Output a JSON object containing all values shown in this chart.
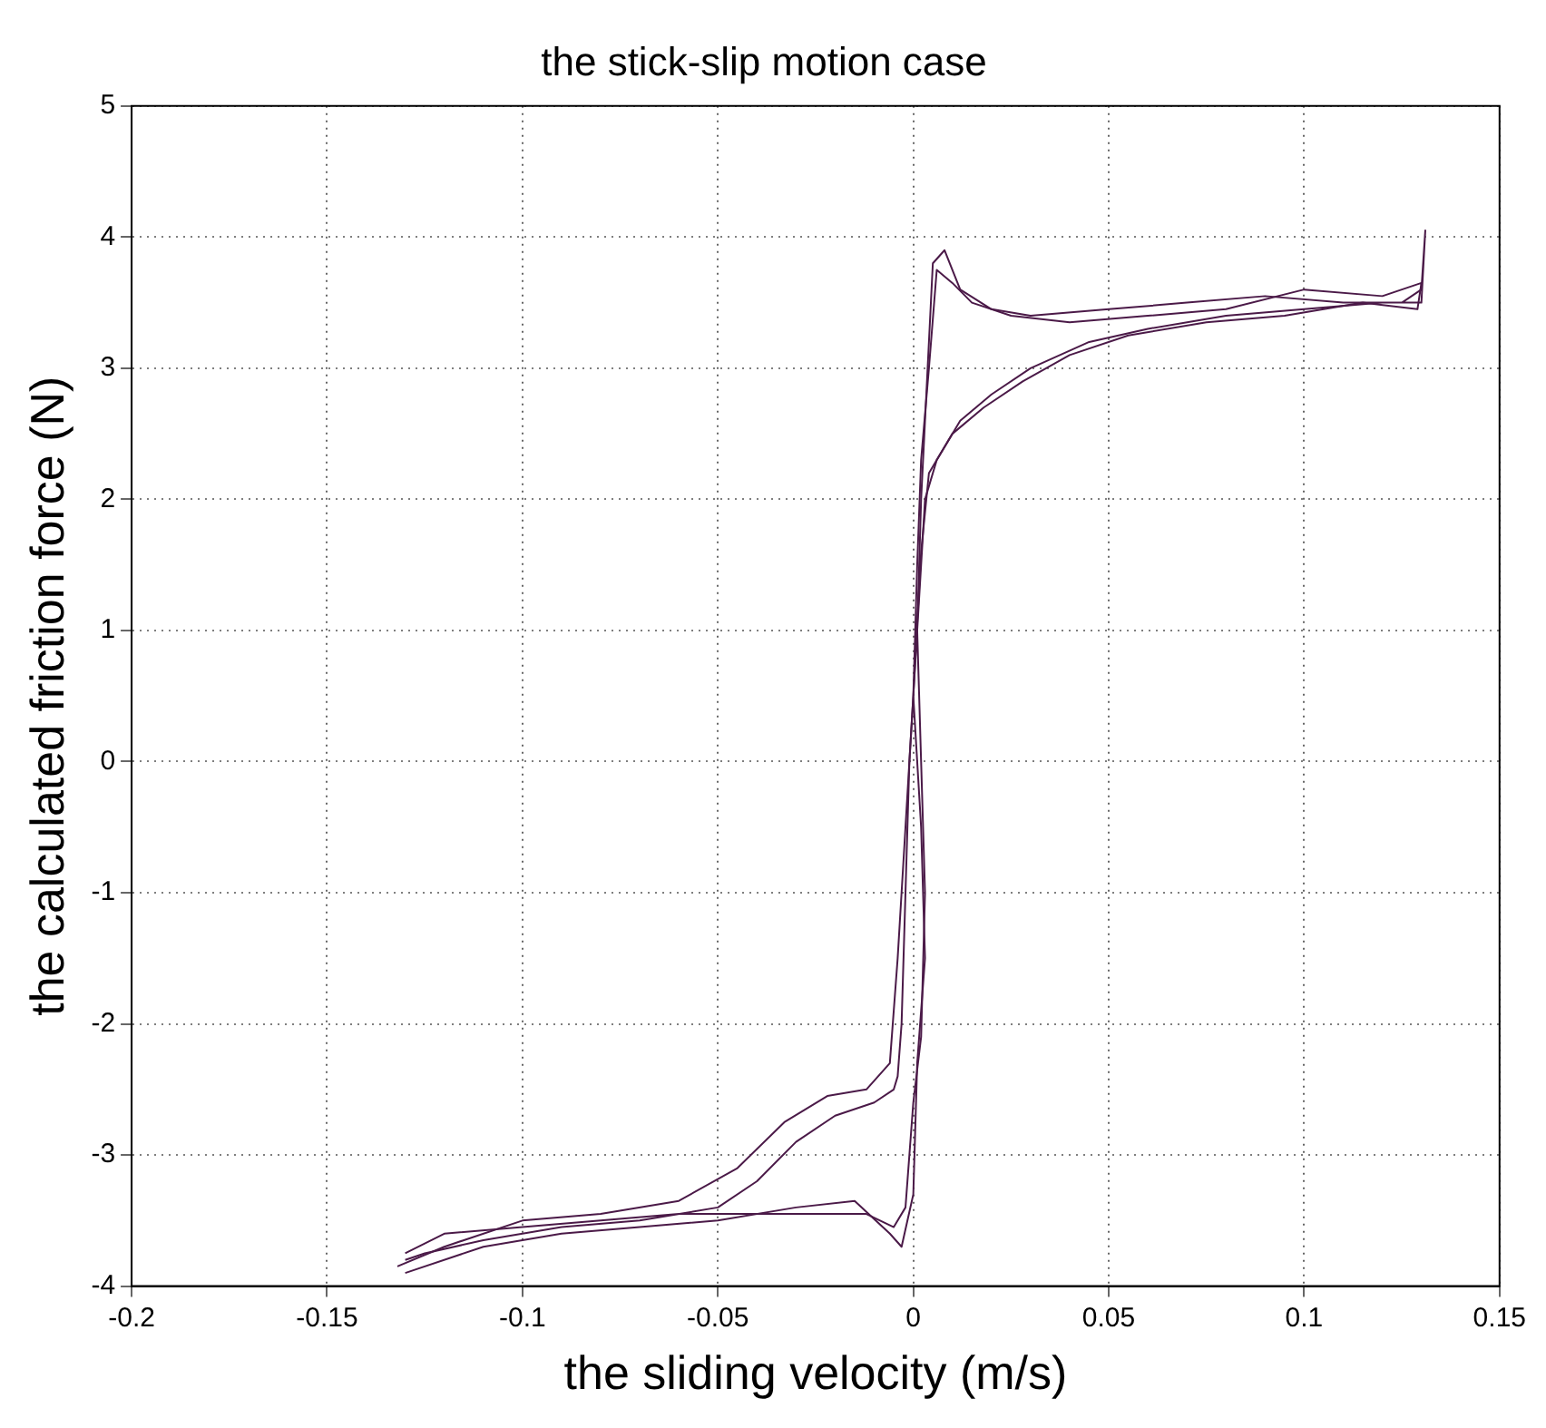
{
  "chart_data": {
    "type": "line",
    "title": "the stick-slip motion case",
    "xlabel": "the sliding velocity (m/s)",
    "ylabel": "the calculated friction force (N)",
    "xlim": [
      -0.2,
      0.15
    ],
    "xticks": [
      -0.2,
      -0.15,
      -0.1,
      -0.05,
      0,
      0.05,
      0.1,
      0.15
    ],
    "ylim": [
      -4,
      5
    ],
    "yticks": [
      -4,
      -3,
      -2,
      -1,
      0,
      1,
      2,
      3,
      4,
      5
    ],
    "grid": true,
    "marker": "none",
    "line_style": "solid",
    "legend": false,
    "series": [
      {
        "color": "#4b1a48",
        "x": [
          -0.13,
          -0.12,
          -0.1,
          -0.08,
          -0.06,
          -0.04,
          -0.025,
          -0.012,
          -0.005,
          -0.002,
          0.0,
          0.002,
          0.003,
          0.002,
          0.001,
          0.002,
          0.003,
          0.005,
          0.008,
          0.012,
          0.02,
          0.03,
          0.05,
          0.07,
          0.09,
          0.11,
          0.125,
          0.13,
          0.131,
          0.13,
          0.12,
          0.1,
          0.08,
          0.06,
          0.045,
          0.03,
          0.02,
          0.012,
          0.006,
          0.003,
          0.001,
          -0.001,
          -0.002,
          -0.003,
          -0.004,
          -0.005,
          -0.01,
          -0.02,
          -0.03,
          -0.04,
          -0.05,
          -0.07,
          -0.09,
          -0.11,
          -0.125,
          -0.13
        ],
        "values": [
          -3.75,
          -3.6,
          -3.55,
          -3.5,
          -3.45,
          -3.45,
          -3.45,
          -3.45,
          -3.55,
          -3.4,
          -2.6,
          -2.1,
          -1.0,
          0.0,
          1.0,
          2.0,
          2.6,
          3.8,
          3.9,
          3.6,
          3.45,
          3.4,
          3.45,
          3.5,
          3.55,
          3.5,
          3.5,
          3.6,
          4.05,
          3.5,
          3.5,
          3.45,
          3.4,
          3.3,
          3.2,
          3.0,
          2.8,
          2.6,
          2.3,
          2.0,
          1.0,
          0.0,
          -1.0,
          -2.0,
          -2.4,
          -2.5,
          -2.6,
          -2.7,
          -2.9,
          -3.2,
          -3.4,
          -3.5,
          -3.55,
          -3.65,
          -3.75,
          -3.8
        ]
      },
      {
        "color": "#4b1a48",
        "x": [
          -0.13,
          -0.11,
          -0.09,
          -0.07,
          -0.05,
          -0.03,
          -0.015,
          -0.006,
          -0.003,
          0.0,
          0.001,
          0.003,
          0.002,
          0.0,
          0.001,
          0.002,
          0.004,
          0.006,
          0.01,
          0.015,
          0.025,
          0.04,
          0.06,
          0.08,
          0.1,
          0.12,
          0.13,
          0.129,
          0.115,
          0.095,
          0.075,
          0.055,
          0.04,
          0.028,
          0.018,
          0.01,
          0.004,
          0.002,
          0.0,
          -0.002,
          -0.004,
          -0.006,
          -0.012,
          -0.022,
          -0.033,
          -0.045,
          -0.06,
          -0.08,
          -0.1,
          -0.12,
          -0.132
        ],
        "values": [
          -3.9,
          -3.7,
          -3.6,
          -3.55,
          -3.5,
          -3.4,
          -3.35,
          -3.6,
          -3.7,
          -3.3,
          -2.3,
          -1.5,
          -0.5,
          0.5,
          1.5,
          2.3,
          3.0,
          3.75,
          3.65,
          3.5,
          3.4,
          3.35,
          3.4,
          3.45,
          3.6,
          3.55,
          3.65,
          3.45,
          3.5,
          3.4,
          3.35,
          3.25,
          3.1,
          2.9,
          2.7,
          2.5,
          2.2,
          1.6,
          0.5,
          -0.5,
          -1.5,
          -2.3,
          -2.5,
          -2.55,
          -2.75,
          -3.1,
          -3.35,
          -3.45,
          -3.5,
          -3.7,
          -3.85
        ]
      }
    ]
  }
}
